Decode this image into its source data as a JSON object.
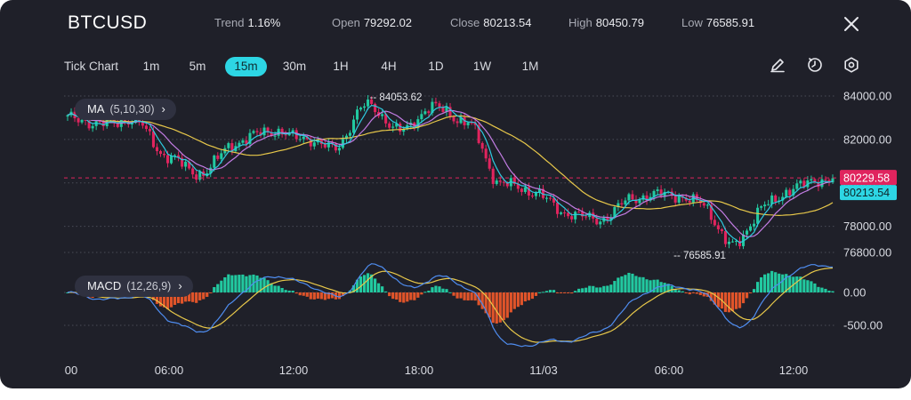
{
  "header": {
    "symbol": "BTCUSD",
    "trend_label": "Trend",
    "trend_value": "1.16%",
    "open_label": "Open",
    "open_value": "79292.02",
    "close_label": "Close",
    "close_value": "80213.54",
    "high_label": "High",
    "high_value": "80450.79",
    "low_label": "Low",
    "low_value": "76585.91"
  },
  "timeframes": [
    "Tick Chart",
    "1m",
    "5m",
    "15m",
    "30m",
    "1H",
    "4H",
    "1D",
    "1W",
    "1M"
  ],
  "active_timeframe": "15m",
  "tools": [
    "draw-icon",
    "timer-icon",
    "settings-icon"
  ],
  "indicators": {
    "ma_label": "MA",
    "ma_params": "(5,10,30)",
    "macd_label": "MACD",
    "macd_params": "(12,26,9)"
  },
  "colors": {
    "background": "#1f2029",
    "up": "#22c9a0",
    "down": "#e0245e",
    "macd_hist_down": "#e0542a",
    "ma_fast": "#2ecbe0",
    "ma_mid": "#c27ce3",
    "ma_slow": "#e8c84a",
    "macd_line": "#4f8df0",
    "signal_line": "#e8c84a",
    "accent": "#2dd6e4"
  },
  "chart_data": [
    {
      "type": "candlestick",
      "ylim": [
        76500,
        84500
      ],
      "y_ticks": [
        "84000.00",
        "82000.00",
        "80000.00",
        "78000.00",
        "76800.00"
      ],
      "x_ticks": [
        "00",
        "06:00",
        "12:00",
        "18:00",
        "11/03",
        "06:00",
        "12:00"
      ],
      "price_anchors_y": [
        83000,
        82700,
        82900,
        81200,
        80400,
        81800,
        82400,
        82100,
        81600,
        83600,
        82400,
        83500,
        82800,
        80000,
        79600,
        78600,
        78300,
        79300,
        79500,
        79100,
        77100,
        79000,
        79900,
        80213.54
      ],
      "last_price_label": "80229.58",
      "close_label": "80213.54",
      "high_annotation": "84053.62",
      "low_annotation": "76585.91",
      "moving_averages": [
        "MA5",
        "MA10",
        "MA30"
      ]
    },
    {
      "type": "macd",
      "ylim": [
        -800,
        500
      ],
      "y_ticks": [
        "0.00",
        "-500.00"
      ],
      "histogram": "derived from MACD minus signal",
      "lines": [
        "MACD",
        "Signal"
      ]
    }
  ]
}
